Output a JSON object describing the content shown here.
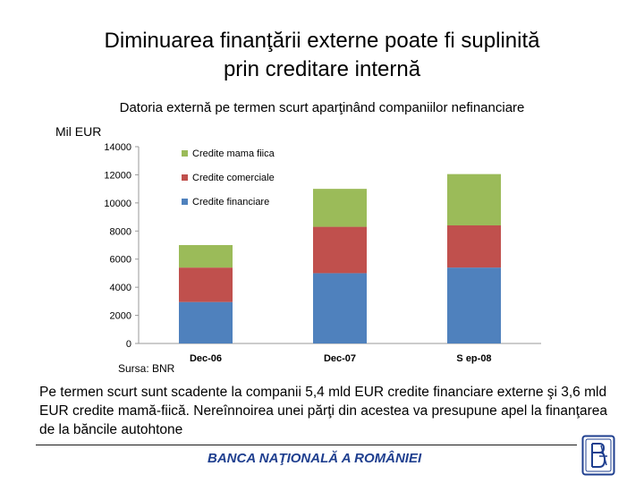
{
  "title_line1": "Diminuarea finanţării externe poate fi suplinită",
  "title_line2": "prin creditare internă",
  "chart_title": "Datoria externă pe termen scurt aparţinând companiilor nefinanciare",
  "unit": "Mil EUR",
  "source": "Sursa: BNR",
  "body_text": "Pe termen scurt sunt scadente la companii 5,4 mld EUR credite financiare externe şi 3,6 mld EUR credite mamă-fiică. Nereînnoirea unei părţi din acestea va presupune apel la finanţarea de la băncile autohtone",
  "footer": "BANCA NAŢIONALĂ A ROMÂNIEI",
  "logo_icon": "bnr-monogram-icon",
  "chart_data": {
    "type": "bar",
    "stacked": true,
    "categories": [
      "Dec-06",
      "Dec-07",
      "S ep-08"
    ],
    "series": [
      {
        "name": "Credite financiare",
        "color": "#4f81bd",
        "values": [
          2950,
          5000,
          5400
        ]
      },
      {
        "name": "Credite comerciale",
        "color": "#c0504d",
        "values": [
          2450,
          3300,
          3000
        ]
      },
      {
        "name": "Credite mama fiica",
        "color": "#9bbb59",
        "values": [
          1600,
          2700,
          3650
        ]
      }
    ],
    "legend_order": [
      "Credite mama fiica",
      "Credite comerciale",
      "Credite financiare"
    ],
    "ylim": [
      0,
      14000
    ],
    "yticks": [
      "0",
      "2000",
      "4000",
      "6000",
      "8000",
      "10000",
      "12000",
      "14000"
    ],
    "grid": false,
    "legend_position": "top-left",
    "xlabel": "",
    "ylabel": "Mil EUR"
  }
}
